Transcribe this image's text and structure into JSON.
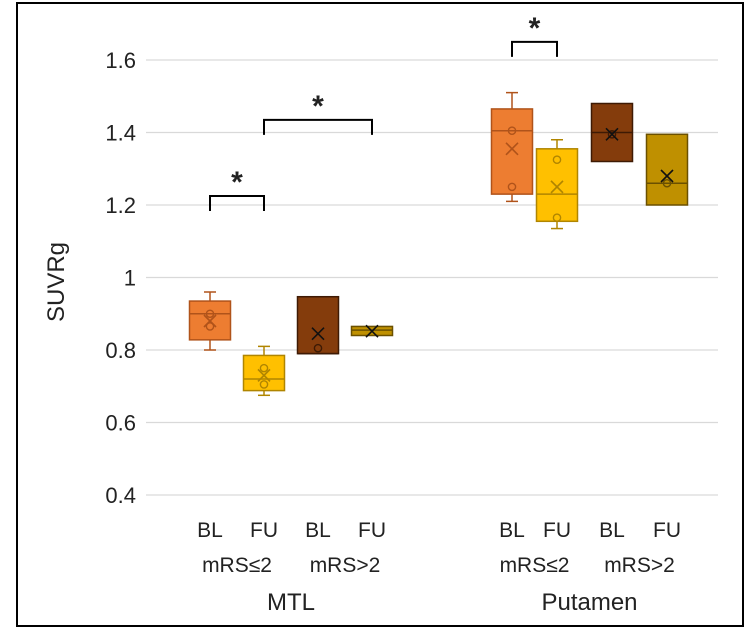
{
  "chart_data": {
    "type": "box",
    "title": "",
    "ylabel": "SUVRg",
    "ylim": [
      0.4,
      1.6
    ],
    "yticks": [
      "0.4",
      "0.6",
      "0.8",
      "1",
      "1.2",
      "1.4",
      "1.6"
    ],
    "grid": true,
    "regions": [
      {
        "name": "MTL",
        "groups": [
          {
            "name": "mRS≤2",
            "boxes": [
              {
                "label": "BL",
                "color": "#ED7D31",
                "stroke": "#B0531A",
                "min": 0.8,
                "q1": 0.828,
                "median": 0.9,
                "q3": 0.935,
                "max": 0.96,
                "mean": 0.88,
                "points": [
                  0.9,
                  0.865
                ]
              },
              {
                "label": "FU",
                "color": "#FFC000",
                "stroke": "#B08500",
                "min": 0.675,
                "q1": 0.688,
                "median": 0.72,
                "q3": 0.785,
                "max": 0.81,
                "mean": 0.73,
                "points": [
                  0.75,
                  0.705
                ]
              }
            ]
          },
          {
            "name": "mRS>2",
            "boxes": [
              {
                "label": "BL",
                "color": "#843C0C",
                "stroke": "#3E1A04",
                "min": 0.79,
                "q1": 0.79,
                "median": 0.79,
                "q3": 0.947,
                "max": 0.947,
                "mean": 0.845,
                "points": [
                  0.805
                ]
              },
              {
                "label": "FU",
                "color": "#BF9000",
                "stroke": "#6B5000",
                "min": 0.84,
                "q1": 0.84,
                "median": 0.855,
                "q3": 0.865,
                "max": 0.865,
                "mean": 0.852,
                "points": []
              }
            ]
          }
        ]
      },
      {
        "name": "Putamen",
        "groups": [
          {
            "name": "mRS≤2",
            "boxes": [
              {
                "label": "BL",
                "color": "#ED7D31",
                "stroke": "#B0531A",
                "min": 1.21,
                "q1": 1.23,
                "median": 1.405,
                "q3": 1.465,
                "max": 1.51,
                "mean": 1.355,
                "points": [
                  1.405,
                  1.25
                ]
              },
              {
                "label": "FU",
                "color": "#FFC000",
                "stroke": "#B08500",
                "min": 1.135,
                "q1": 1.155,
                "median": 1.23,
                "q3": 1.355,
                "max": 1.38,
                "mean": 1.25,
                "points": [
                  1.325,
                  1.165
                ]
              }
            ]
          },
          {
            "name": "mRS>2",
            "boxes": [
              {
                "label": "BL",
                "color": "#843C0C",
                "stroke": "#3E1A04",
                "min": 1.32,
                "q1": 1.32,
                "median": 1.4,
                "q3": 1.48,
                "max": 1.48,
                "mean": 1.395,
                "points": [
                  1.395
                ]
              },
              {
                "label": "FU",
                "color": "#BF9000",
                "stroke": "#6B5000",
                "min": 1.2,
                "q1": 1.2,
                "median": 1.26,
                "q3": 1.395,
                "max": 1.395,
                "mean": 1.28,
                "points": [
                  1.26
                ]
              }
            ]
          }
        ]
      }
    ],
    "significance": [
      {
        "label": "*",
        "from": "MTL mRS≤2 BL",
        "to": "MTL mRS≤2 FU",
        "y": 1.225
      },
      {
        "label": "*",
        "from": "MTL mRS≤2 FU",
        "to": "MTL mRS>2 FU",
        "y": 1.435
      },
      {
        "label": "*",
        "from": "Putamen mRS≤2 BL",
        "to": "Putamen mRS≤2 FU",
        "y": 1.65
      }
    ]
  }
}
